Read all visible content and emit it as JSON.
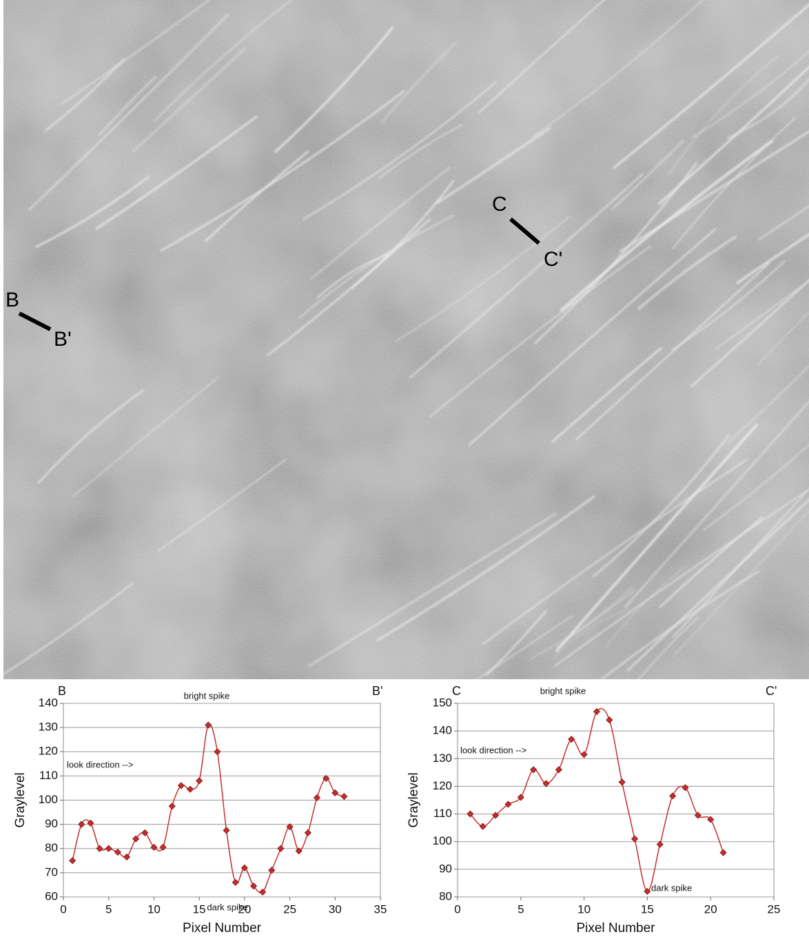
{
  "image": {
    "labels": [
      "B",
      "B'",
      "C",
      "C'"
    ]
  },
  "chart_data": [
    {
      "type": "line",
      "start_label": "B",
      "end_label": "B'",
      "ylabel": "Graylevel",
      "xlabel": "Pixel Number",
      "annotations": [
        "bright spike",
        "look direction -->",
        "dark spike"
      ],
      "x": [
        1,
        2,
        3,
        4,
        5,
        6,
        7,
        8,
        9,
        10,
        11,
        12,
        13,
        14,
        15,
        16,
        17,
        18,
        19,
        20,
        21,
        22,
        23,
        24,
        25,
        26,
        27,
        28,
        29,
        30,
        31
      ],
      "color": "#c62d2d",
      "values": [
        75,
        90,
        90.5,
        80,
        80,
        78.5,
        76.5,
        84,
        86.5,
        80.5,
        80.5,
        97.5,
        106,
        104.5,
        108,
        131,
        120,
        87.5,
        66,
        72,
        64.5,
        62,
        71,
        80,
        89,
        79,
        86.5,
        101,
        109,
        103,
        101.5
      ],
      "xlim": [
        0,
        35
      ],
      "xticks": [
        0,
        5,
        10,
        15,
        20,
        25,
        30,
        35
      ],
      "ylim": [
        60,
        140
      ],
      "yticks": [
        60,
        70,
        80,
        90,
        100,
        110,
        120,
        130,
        140
      ],
      "grid": true
    },
    {
      "type": "line",
      "start_label": "C",
      "end_label": "C'",
      "ylabel": "Graylevel",
      "xlabel": "Pixel Number",
      "annotations": [
        "bright spike",
        "look direction -->",
        "dark spike"
      ],
      "x": [
        1,
        2,
        3,
        4,
        5,
        6,
        7,
        8,
        9,
        10,
        11,
        12,
        13,
        14,
        15,
        16,
        17,
        18,
        19,
        20,
        21
      ],
      "color": "#c62d2d",
      "values": [
        110,
        105.5,
        109.5,
        113.5,
        116,
        126,
        121,
        126,
        137,
        131.5,
        147,
        144,
        121.5,
        101,
        82,
        99,
        116.5,
        119.5,
        109.5,
        108,
        96
      ],
      "xlim": [
        0,
        25
      ],
      "xticks": [
        0,
        5,
        10,
        15,
        20,
        25
      ],
      "ylim": [
        80,
        150
      ],
      "yticks": [
        80,
        90,
        100,
        110,
        120,
        130,
        140,
        150
      ],
      "grid": true
    }
  ]
}
